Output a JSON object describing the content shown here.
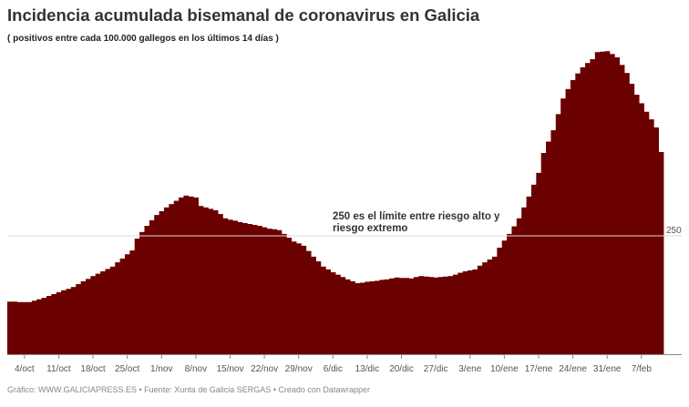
{
  "header": {
    "title": "Incidencia acumulada bisemanal de coronavirus en Galicia",
    "subtitle": "( positivos entre cada 100.000 gallegos en los últimos 14 días )"
  },
  "footer": {
    "text": "Gráfico: WWW.GALICIAPRESS.ES • Fuente: Xunta de Galicia SERGAS • Creado con Datawrapper"
  },
  "chart_data": {
    "type": "bar",
    "title": "Incidencia acumulada bisemanal de coronavirus en Galicia",
    "subtitle": "( positivos entre cada 100.000 gallegos en los últimos 14 días )",
    "color": "#6b0000",
    "ylim": [
      0,
      700
    ],
    "grid": false,
    "reference_line": {
      "value": 250,
      "label": "250"
    },
    "annotation": {
      "line1": "250 es el límite entre riesgo alto y",
      "line2": "riesgo extremo"
    },
    "x_tick_labels": [
      "4/oct",
      "11/oct",
      "18/oct",
      "25/oct",
      "1/nov",
      "8/nov",
      "15/nov",
      "22/nov",
      "29/nov",
      "6/dic",
      "13/dic",
      "20/dic",
      "27/dic",
      "3/ene",
      "10/ene",
      "17/ene",
      "24/ene",
      "31/ene",
      "7/feb"
    ],
    "values": [
      111,
      111,
      110,
      110,
      110,
      113,
      116,
      119,
      123,
      127,
      131,
      135,
      138,
      142,
      148,
      154,
      159,
      165,
      170,
      175,
      180,
      185,
      194,
      202,
      211,
      219,
      244,
      258,
      271,
      283,
      294,
      302,
      310,
      317,
      324,
      331,
      335,
      333,
      331,
      313,
      310,
      307,
      304,
      296,
      287,
      284,
      282,
      279,
      277,
      275,
      273,
      271,
      268,
      265,
      264,
      262,
      254,
      246,
      238,
      234,
      229,
      218,
      206,
      196,
      185,
      179,
      173,
      168,
      163,
      158,
      154,
      150,
      151,
      153,
      154,
      155,
      157,
      158,
      160,
      162,
      161,
      161,
      160,
      163,
      165,
      164,
      163,
      162,
      163,
      164,
      165,
      168,
      172,
      175,
      177,
      179,
      187,
      194,
      200,
      206,
      225,
      240,
      254,
      270,
      287,
      310,
      333,
      358,
      383,
      425,
      449,
      473,
      507,
      540,
      560,
      579,
      593,
      606,
      615,
      623,
      638,
      639,
      640,
      634,
      627,
      611,
      594,
      571,
      548,
      530,
      512,
      496,
      479,
      427
    ]
  }
}
